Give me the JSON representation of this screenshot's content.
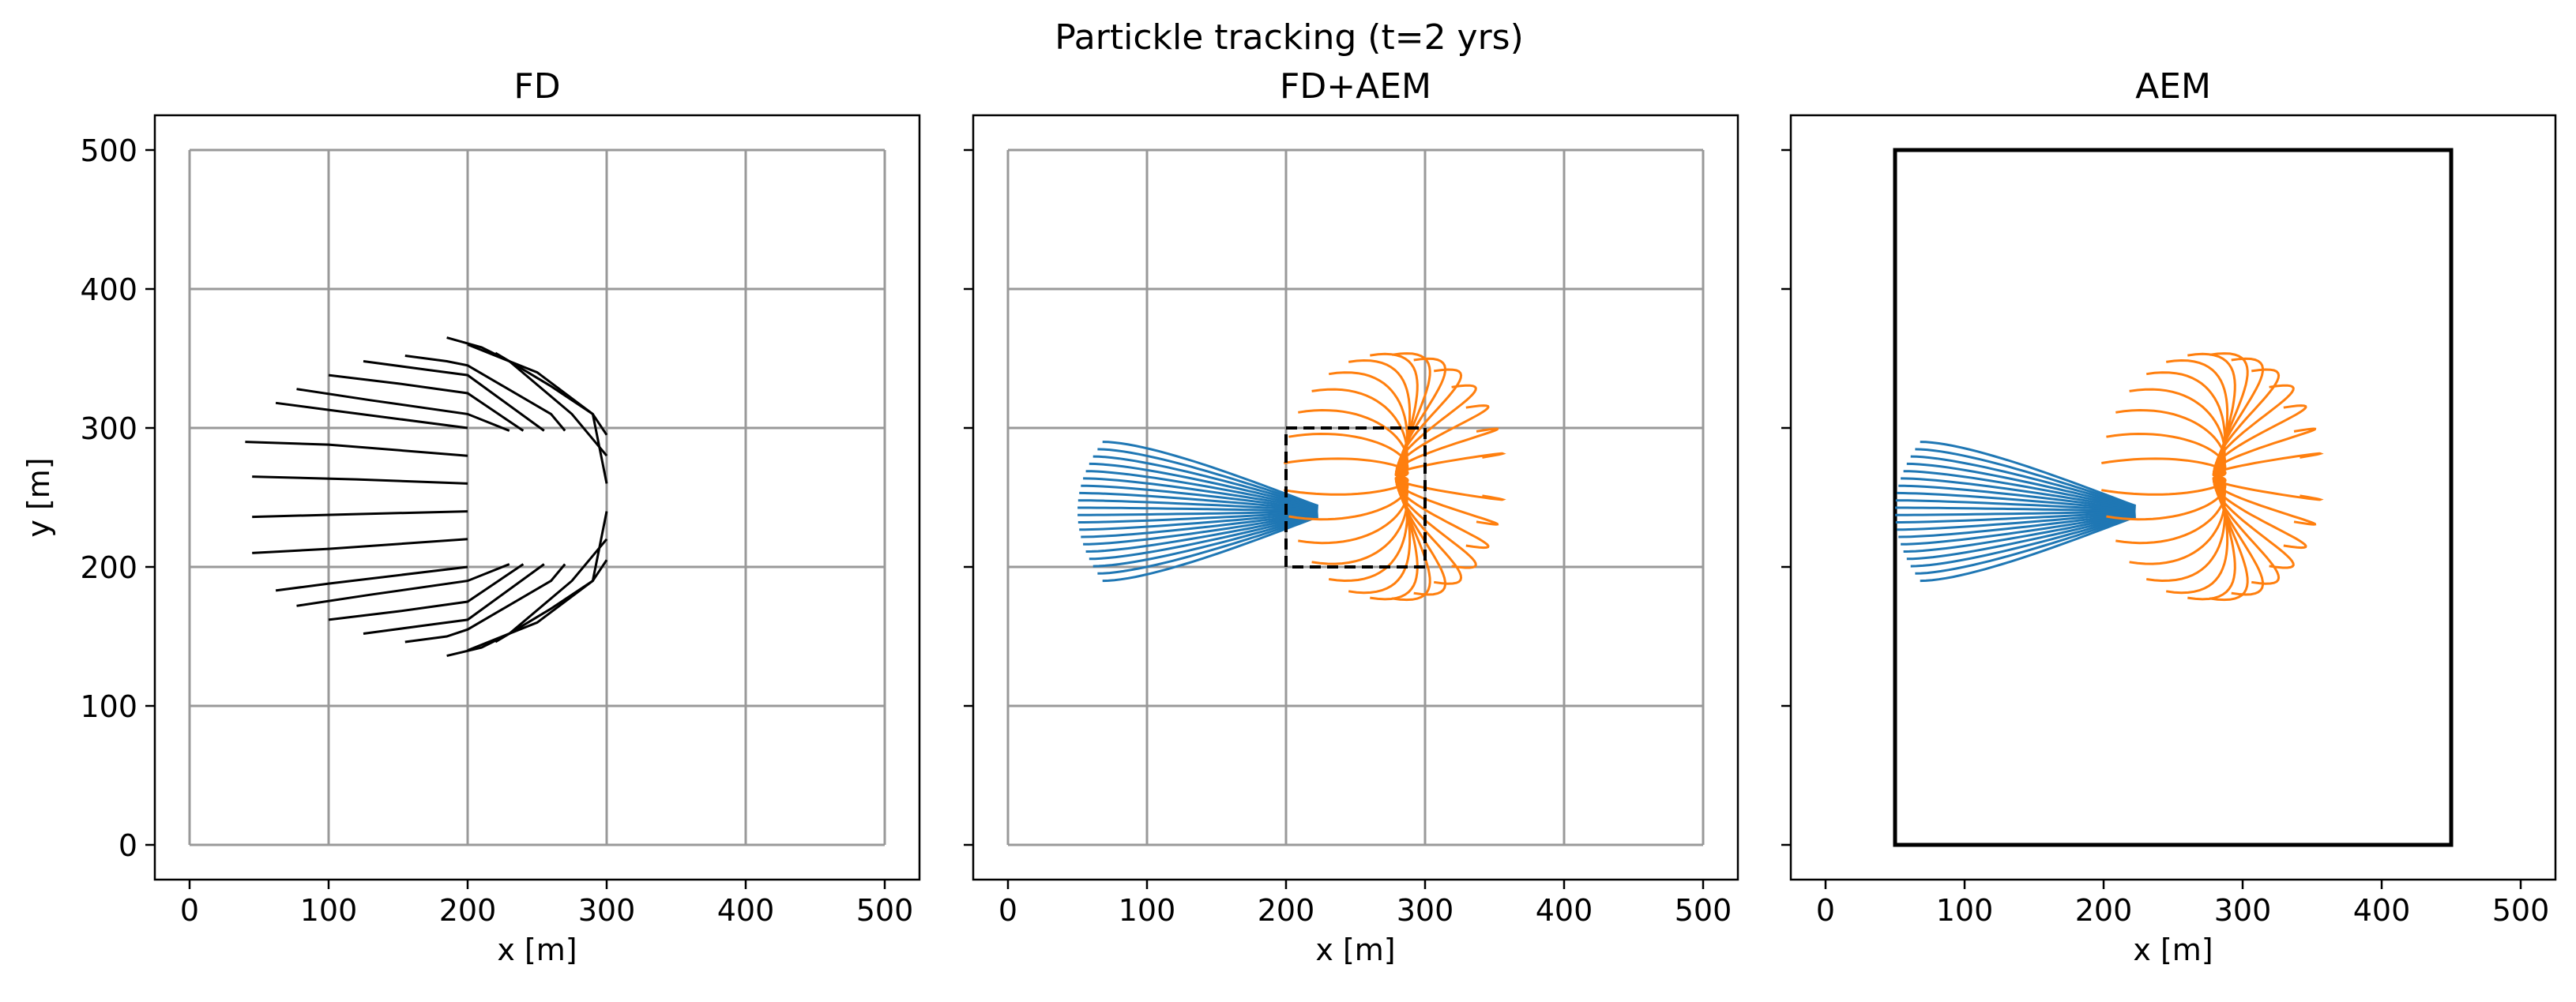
{
  "figure": {
    "suptitle": "Partickle tracking (t=2 yrs)"
  },
  "colors": {
    "fd_path": "#000000",
    "blue_path": "#1f77b4",
    "orange_path": "#ff7f0e",
    "grid": "#999999",
    "frame": "#000000"
  },
  "chart_data": [
    {
      "type": "line",
      "title": "FD",
      "xlabel": "x [m]",
      "ylabel": "y [m]",
      "xlim": [
        -25,
        525
      ],
      "ylim": [
        -25,
        525
      ],
      "xticks": [
        "0",
        "100",
        "200",
        "300",
        "400",
        "500"
      ],
      "yticks": [
        "0",
        "100",
        "200",
        "300",
        "400",
        "500"
      ],
      "grid_cells": {
        "x": [
          0,
          100,
          200,
          300,
          400,
          500
        ],
        "y": [
          0,
          100,
          200,
          300,
          400,
          500
        ]
      },
      "series": [
        {
          "color": "#000000",
          "paths": [
            [
              [
                40,
                290
              ],
              [
                100,
                288
              ],
              [
                200,
                280
              ]
            ],
            [
              [
                45,
                265
              ],
              [
                120,
                263
              ],
              [
                200,
                260
              ]
            ],
            [
              [
                45,
                236
              ],
              [
                120,
                238
              ],
              [
                200,
                240
              ]
            ],
            [
              [
                45,
                210
              ],
              [
                100,
                213
              ],
              [
                200,
                220
              ]
            ],
            [
              [
                62,
                318
              ],
              [
                100,
                313
              ],
              [
                200,
                300
              ]
            ],
            [
              [
                77,
                328
              ],
              [
                130,
                320
              ],
              [
                200,
                310
              ],
              [
                230,
                298
              ]
            ],
            [
              [
                100,
                338
              ],
              [
                150,
                332
              ],
              [
                200,
                325
              ],
              [
                240,
                298
              ]
            ],
            [
              [
                125,
                348
              ],
              [
                170,
                342
              ],
              [
                200,
                338
              ],
              [
                255,
                298
              ]
            ],
            [
              [
                155,
                352
              ],
              [
                185,
                348
              ],
              [
                200,
                345
              ],
              [
                260,
                310
              ],
              [
                270,
                298
              ]
            ],
            [
              [
                185,
                365
              ],
              [
                210,
                358
              ],
              [
                230,
                348
              ],
              [
                275,
                310
              ],
              [
                300,
                280
              ]
            ],
            [
              [
                220,
                354
              ],
              [
                260,
                330
              ],
              [
                290,
                310
              ],
              [
                300,
                295
              ]
            ],
            [
              [
                62,
                183
              ],
              [
                100,
                188
              ],
              [
                200,
                200
              ]
            ],
            [
              [
                77,
                172
              ],
              [
                130,
                180
              ],
              [
                200,
                190
              ],
              [
                230,
                202
              ]
            ],
            [
              [
                100,
                162
              ],
              [
                150,
                168
              ],
              [
                200,
                175
              ],
              [
                240,
                202
              ]
            ],
            [
              [
                125,
                152
              ],
              [
                170,
                158
              ],
              [
                200,
                162
              ],
              [
                255,
                202
              ]
            ],
            [
              [
                155,
                146
              ],
              [
                185,
                150
              ],
              [
                200,
                155
              ],
              [
                260,
                190
              ],
              [
                270,
                202
              ]
            ],
            [
              [
                185,
                136
              ],
              [
                210,
                142
              ],
              [
                230,
                152
              ],
              [
                275,
                190
              ],
              [
                300,
                220
              ]
            ],
            [
              [
                220,
                146
              ],
              [
                260,
                170
              ],
              [
                290,
                190
              ],
              [
                300,
                205
              ]
            ],
            [
              [
                200,
                360
              ],
              [
                250,
                340
              ],
              [
                290,
                310
              ],
              [
                300,
                260
              ]
            ],
            [
              [
                200,
                140
              ],
              [
                250,
                160
              ],
              [
                290,
                190
              ],
              [
                300,
                240
              ]
            ]
          ]
        }
      ]
    },
    {
      "type": "line",
      "title": "FD+AEM",
      "xlabel": "x [m]",
      "ylabel": "",
      "xlim": [
        -25,
        525
      ],
      "ylim": [
        -25,
        525
      ],
      "xticks": [
        "0",
        "100",
        "200",
        "300",
        "400",
        "500"
      ],
      "yticks": [
        "",
        "",
        "",
        "",
        "",
        ""
      ],
      "grid_cells": {
        "x": [
          0,
          100,
          200,
          300,
          400,
          500
        ],
        "y": [
          0,
          100,
          200,
          300,
          400,
          500
        ]
      },
      "inner_box": {
        "x": [
          200,
          300
        ],
        "y": [
          200,
          300
        ]
      },
      "source": [
        225,
        240
      ],
      "sink": [
        280,
        265
      ],
      "blue_start_x": 100,
      "orange_start_x": 200,
      "series": [
        {
          "color": "#1f77b4",
          "n": 20
        },
        {
          "color": "#ff7f0e",
          "n": 28
        }
      ]
    },
    {
      "type": "line",
      "title": "AEM",
      "xlabel": "x [m]",
      "ylabel": "",
      "xlim": [
        -25,
        525
      ],
      "ylim": [
        -25,
        525
      ],
      "xticks": [
        "0",
        "100",
        "200",
        "300",
        "400",
        "500"
      ],
      "yticks": [
        "",
        "",
        "",
        "",
        "",
        ""
      ],
      "outer_box": {
        "x": [
          50,
          450
        ],
        "y": [
          0,
          500
        ]
      },
      "source": [
        225,
        240
      ],
      "sink": [
        280,
        265
      ],
      "blue_start_x": 100,
      "orange_start_x": 200,
      "series": [
        {
          "color": "#1f77b4",
          "n": 20
        },
        {
          "color": "#ff7f0e",
          "n": 28
        }
      ]
    }
  ]
}
